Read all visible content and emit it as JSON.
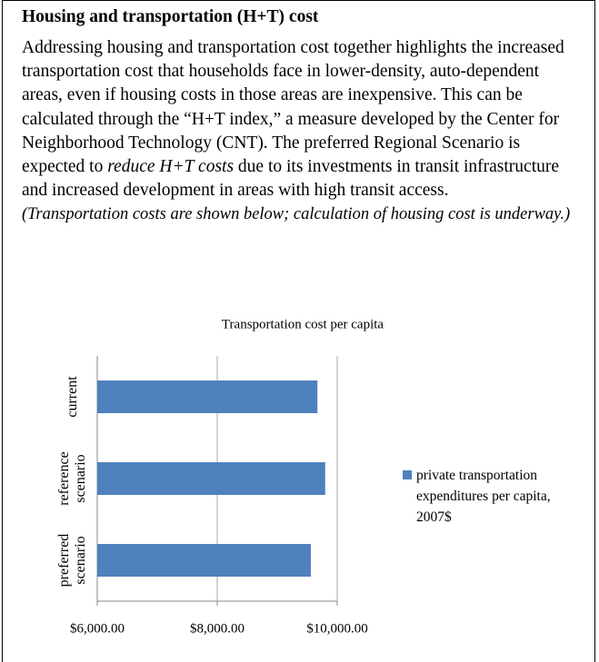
{
  "header": {
    "title": "Housing and transportation (H+T) cost"
  },
  "body": {
    "parts": [
      {
        "text": "Addressing housing and transportation cost together highlights the increased transportation cost that households face in lower-density, auto-dependent areas, even if housing costs in those areas are inexpensive.  This can be calculated through the “H+T index,” a measure developed by the Center for Neighborhood Technology (CNT).  The preferred Regional Scenario is expected to ",
        "style": "normal"
      },
      {
        "text": "reduce H+T costs",
        "style": "italic"
      },
      {
        "text": " due to its investments in transit infrastructure and increased development in areas with high transit access.",
        "style": "normal"
      }
    ],
    "note": "(Transportation costs are shown below; calculation of housing cost is underway.)"
  },
  "chart_data": {
    "type": "bar",
    "orientation": "horizontal",
    "title": "Transportation cost per capita",
    "categories": [
      "current",
      "reference scenario",
      "preferred scenario"
    ],
    "series": [
      {
        "name": "private transportation expenditures per capita, 2007$",
        "color": "#4f81bd",
        "values": [
          9670,
          9800,
          9560
        ]
      }
    ],
    "xlim": [
      6000,
      10000
    ],
    "xticks": [
      {
        "value": 6000,
        "label": "$6,000.00"
      },
      {
        "value": 8000,
        "label": "$8,000.00"
      },
      {
        "value": 10000,
        "label": "$10,000.00"
      }
    ],
    "grid": true,
    "legend": "right"
  }
}
